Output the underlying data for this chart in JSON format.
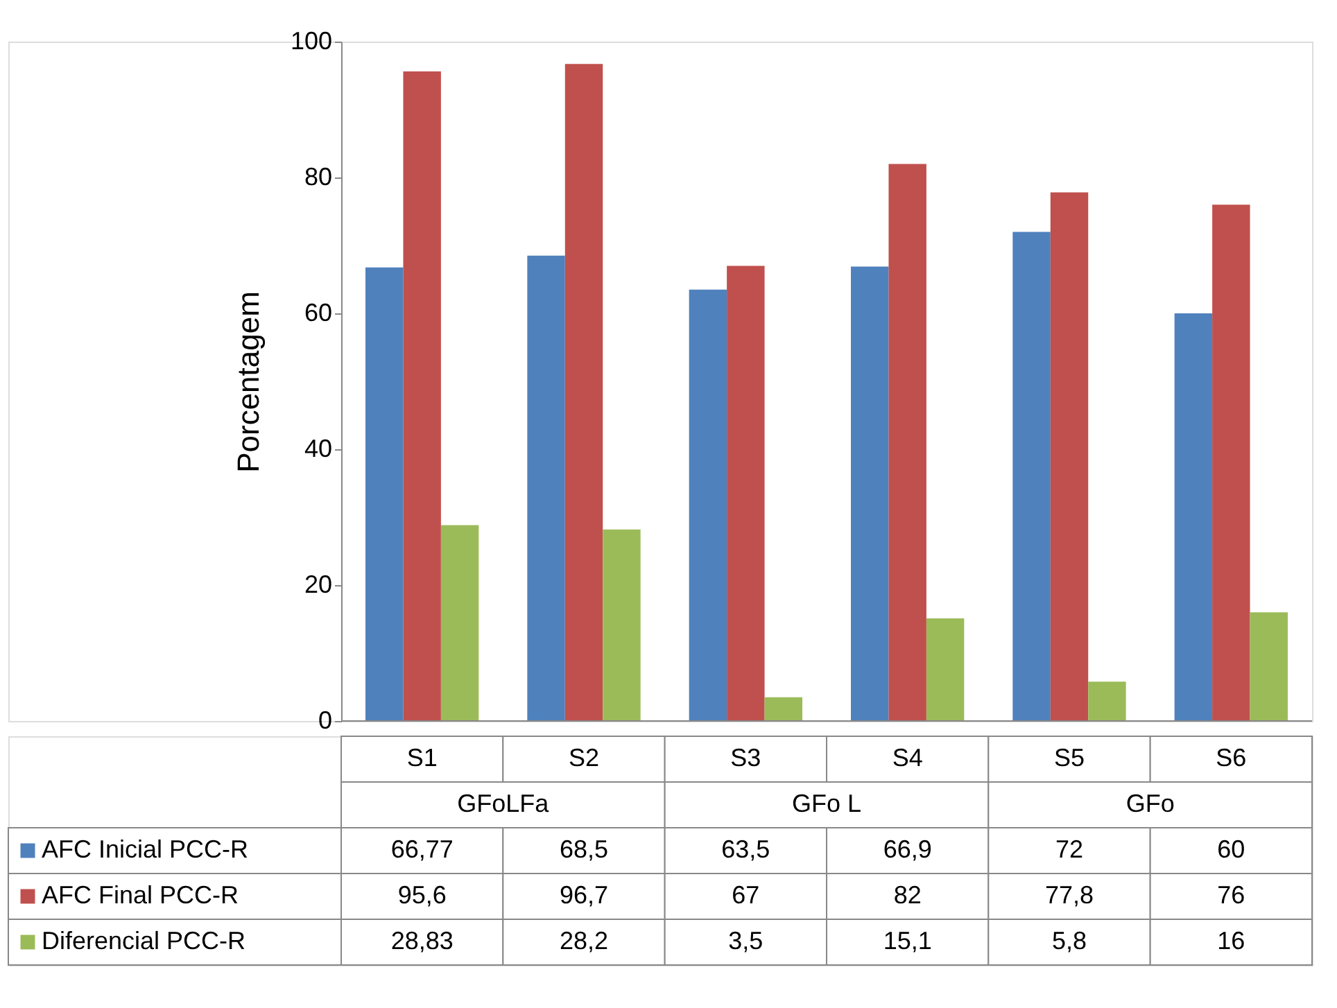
{
  "chart_data": {
    "type": "bar",
    "ylabel": "Porcentagem",
    "categories": [
      "S1",
      "S2",
      "S3",
      "S4",
      "S5",
      "S6"
    ],
    "annotations": [
      "GFoLFa",
      "GFo L",
      "GFo"
    ],
    "series": [
      {
        "name": "AFC Inicial PCC-R",
        "color": "#4f81bd",
        "values": [
          66.77,
          68.5,
          63.5,
          66.9,
          72,
          60
        ],
        "value_labels": [
          "66,77",
          "68,5",
          "63,5",
          "66,9",
          "72",
          "60"
        ]
      },
      {
        "name": "AFC Final PCC-R",
        "color": "#c0504d",
        "values": [
          95.6,
          96.7,
          67,
          82,
          77.8,
          76
        ],
        "value_labels": [
          "95,6",
          "96,7",
          "67",
          "82",
          "77,8",
          "76"
        ]
      },
      {
        "name": "Diferencial PCC-R",
        "color": "#9bbb59",
        "values": [
          28.83,
          28.2,
          3.5,
          15.1,
          5.8,
          16
        ],
        "value_labels": [
          "28,83",
          "28,2",
          "3,5",
          "15,1",
          "5,8",
          "16"
        ]
      }
    ],
    "ylim": [
      0,
      100
    ],
    "yticks": [
      0,
      20,
      40,
      60,
      80,
      100
    ],
    "grid": false,
    "legend": "bottom left"
  }
}
